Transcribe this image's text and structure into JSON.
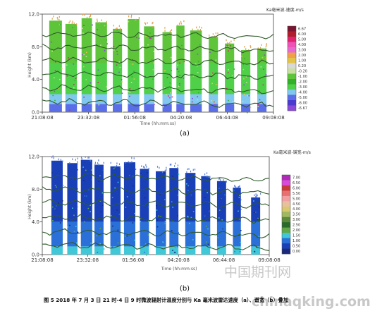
{
  "chart_data": [
    {
      "type": "heatmap",
      "label": "(a)",
      "legend_title": "Ka毫米波-速度-m/s",
      "ylabel": "Height (km)",
      "xlabel": "Time (hh:mm:ss)",
      "ylim": [
        0,
        12
      ],
      "yticks": [
        "0.0",
        "4.0",
        "8.0",
        "12.0"
      ],
      "xticks": [
        "21:08:08",
        "23:32:08",
        "01:56:08",
        "04:20:08",
        "06:44:08",
        "09:08:08"
      ],
      "colorbar": {
        "labels": [
          "6.67",
          "6.00",
          "5.00",
          "4.00",
          "3.00",
          "2.00",
          "1.00",
          "0.20",
          "-0.20",
          "-1.00",
          "-2.00",
          "-3.00",
          "-4.00",
          "-5.00",
          "-6.00",
          "-6.67"
        ],
        "colors": [
          "#7a1430",
          "#b01c2c",
          "#e0236f",
          "#ee52b6",
          "#e76ad0",
          "#f0a048",
          "#e4c448",
          "#d8d8d8",
          "#c8e0a0",
          "#5ec43a",
          "#32b02a",
          "#4fd048",
          "#80c8f0",
          "#5a6ee8",
          "#4a3ad0",
          "#8a4ad8"
        ]
      }
    },
    {
      "type": "heatmap",
      "label": "(b)",
      "legend_title": "Ka毫米波-谱宽-m/s",
      "ylabel": "Height (km)",
      "xlabel": "Time (hh:mm:ss)",
      "ylim": [
        0,
        12
      ],
      "yticks": [
        "0.0",
        "4.0",
        "8.0",
        "12.0"
      ],
      "xticks": [
        "21:08:08",
        "23:32:08",
        "01:56:08",
        "04:20:08",
        "06:44:08",
        "09:08:08"
      ],
      "colorbar": {
        "labels": [
          "7.00",
          "6.50",
          "6.00",
          "5.50",
          "5.00",
          "4.50",
          "4.00",
          "3.50",
          "3.00",
          "2.50",
          "2.00",
          "1.50",
          "1.00",
          "0.50",
          "0.00"
        ],
        "colors": [
          "#b02ab8",
          "#d84ad8",
          "#c83a3a",
          "#e87070",
          "#f0a0a0",
          "#e8c0a0",
          "#d8c870",
          "#a0b860",
          "#5a8a3a",
          "#2a6a2a",
          "#60a848",
          "#40c8d8",
          "#2a70d8",
          "#1a40b8",
          "#1a2a7a"
        ]
      }
    }
  ],
  "caption": "图 5 2018 年 7 月 3 日 21 时-4 日 9 时微波辐射计温度分别与 Ka 毫米波雷达速度（a）、谱宽（b）叠加",
  "watermark": {
    "line1": "中国期刊网",
    "line2": "chinaqking.com"
  }
}
